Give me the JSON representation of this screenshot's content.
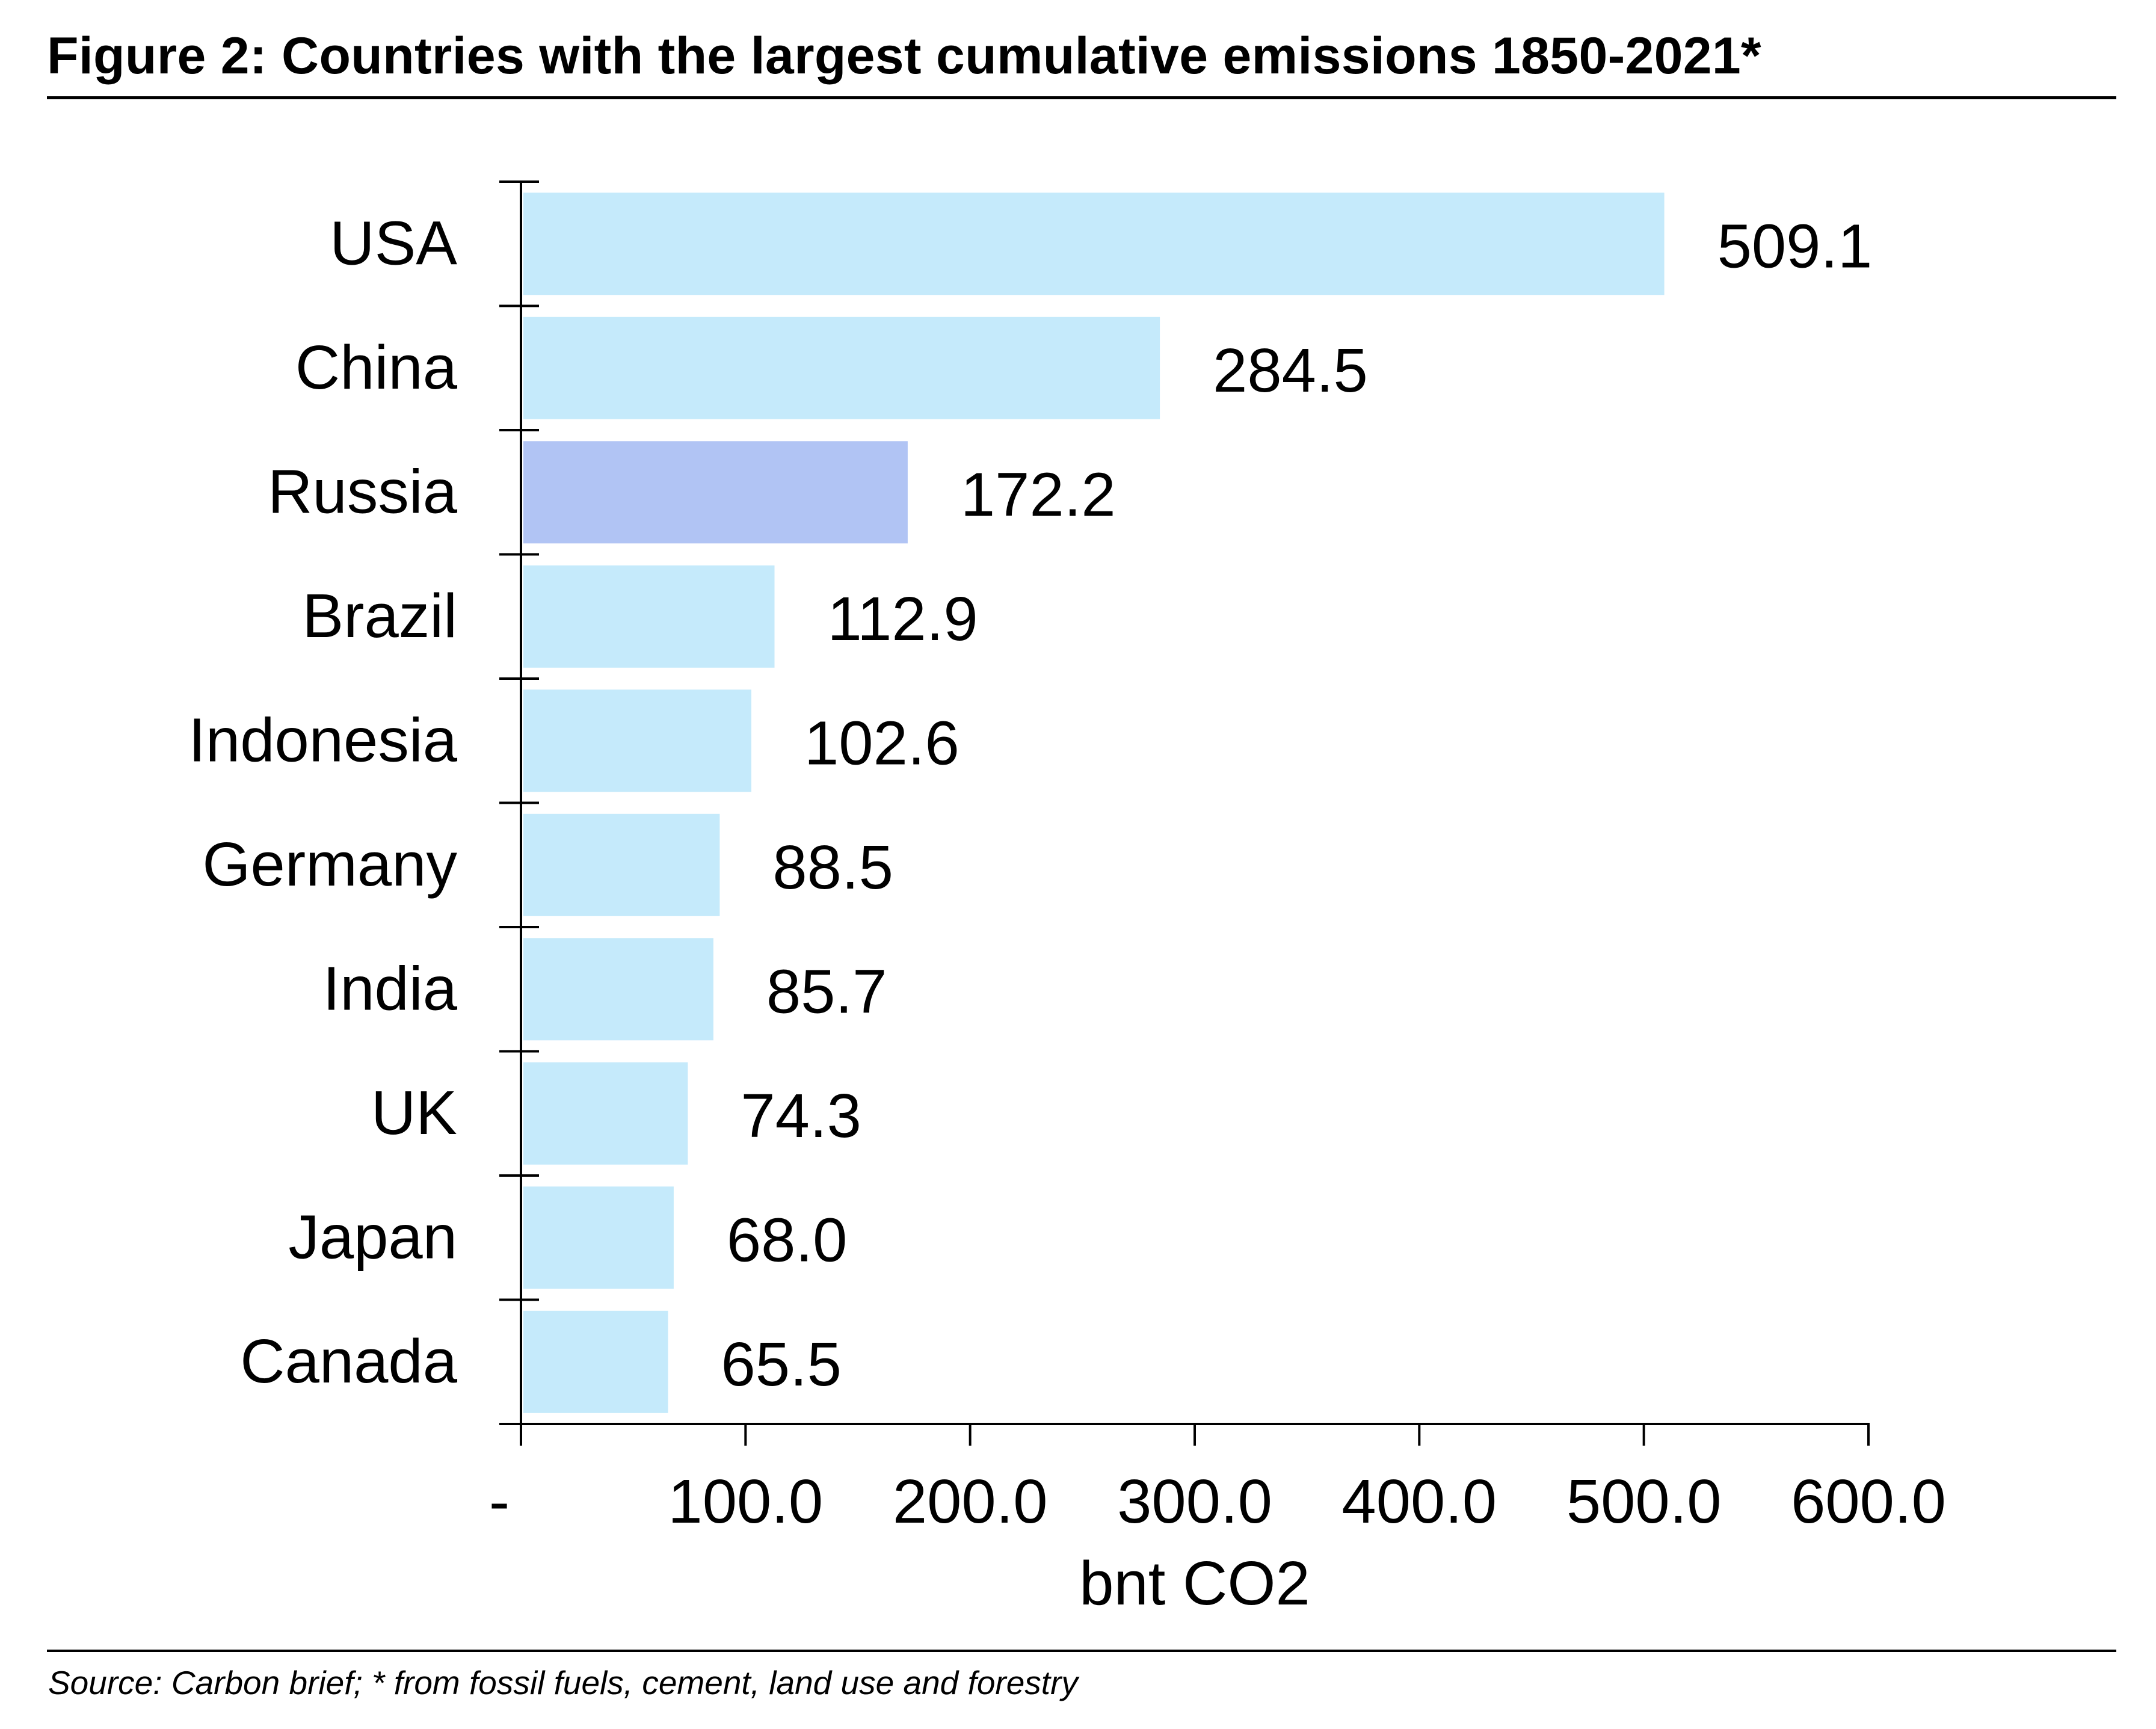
{
  "figure": {
    "title": "Figure 2: Countries with the largest cumulative emissions 1850-2021*",
    "source": "Source: Carbon brief; * from fossil fuels, cement, land use and forestry"
  },
  "colors": {
    "bar_default": "#c5eafb",
    "bar_highlight": "#b1c4f4",
    "axis": "#000000"
  },
  "chart_data": {
    "type": "bar",
    "orientation": "horizontal",
    "title": "",
    "xlabel": "bnt CO2",
    "ylabel": "",
    "xlim": [
      0,
      600
    ],
    "grid": false,
    "categories": [
      "USA",
      "China",
      "Russia",
      "Brazil",
      "Indonesia",
      "Germany",
      "India",
      "UK",
      "Japan",
      "Canada"
    ],
    "values": [
      509.1,
      284.5,
      172.2,
      112.9,
      102.6,
      88.5,
      85.7,
      74.3,
      68.0,
      65.5
    ],
    "data_labels": [
      "509.1",
      "284.5",
      "172.2",
      "112.9",
      "102.6",
      "88.5",
      "85.7",
      "74.3",
      "68.0",
      "65.5"
    ],
    "highlighted_category": "Russia",
    "x_ticks": [
      0,
      100,
      200,
      300,
      400,
      500,
      600
    ],
    "x_tick_labels": [
      "-",
      "100.0",
      "200.0",
      "300.0",
      "400.0",
      "500.0",
      "600.0"
    ]
  }
}
